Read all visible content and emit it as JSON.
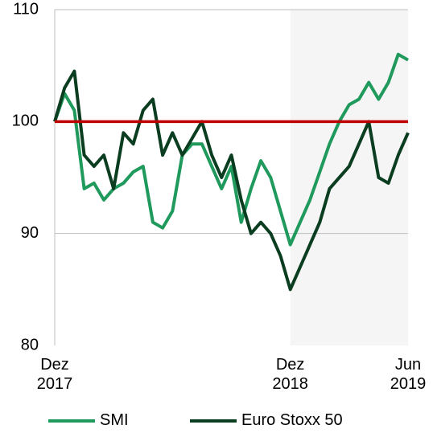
{
  "chart_data": {
    "type": "line",
    "categories": [
      "Dez 2017",
      null,
      null,
      null,
      null,
      null,
      null,
      null,
      null,
      null,
      null,
      null,
      null,
      null,
      null,
      null,
      null,
      null,
      null,
      null,
      null,
      null,
      null,
      null,
      "Dez 2018",
      null,
      null,
      null,
      null,
      null,
      null,
      null,
      null,
      null,
      null,
      null,
      "Jun 2019"
    ],
    "series": [
      {
        "name": "SMI",
        "color": "#1f9a5c",
        "values": [
          100,
          102.5,
          101,
          94,
          94.5,
          93,
          94,
          94.5,
          95.5,
          96,
          91,
          90.5,
          92,
          97,
          98,
          98,
          96,
          94,
          96,
          91,
          94,
          96.5,
          95,
          92,
          89,
          91,
          93,
          95.5,
          98,
          100,
          101.5,
          102,
          103.5,
          102,
          103.5,
          106,
          105.5
        ]
      },
      {
        "name": "Euro Stoxx 50",
        "color": "#0b3d20",
        "values": [
          100,
          103,
          104.5,
          97,
          96,
          97,
          94,
          99,
          98,
          101,
          102,
          97,
          99,
          97,
          98.5,
          100,
          97,
          95,
          97,
          93,
          90,
          91,
          90,
          88,
          85,
          87,
          89,
          91,
          94,
          95,
          96,
          98,
          100,
          95,
          94.5,
          97,
          99
        ]
      }
    ],
    "reference_line": {
      "value": 100,
      "color": "#c00000"
    },
    "shaded_from": 24,
    "ylim": [
      80,
      110
    ],
    "yticks": [
      80,
      90,
      100,
      110
    ],
    "grid": true,
    "legend": "bottom"
  }
}
